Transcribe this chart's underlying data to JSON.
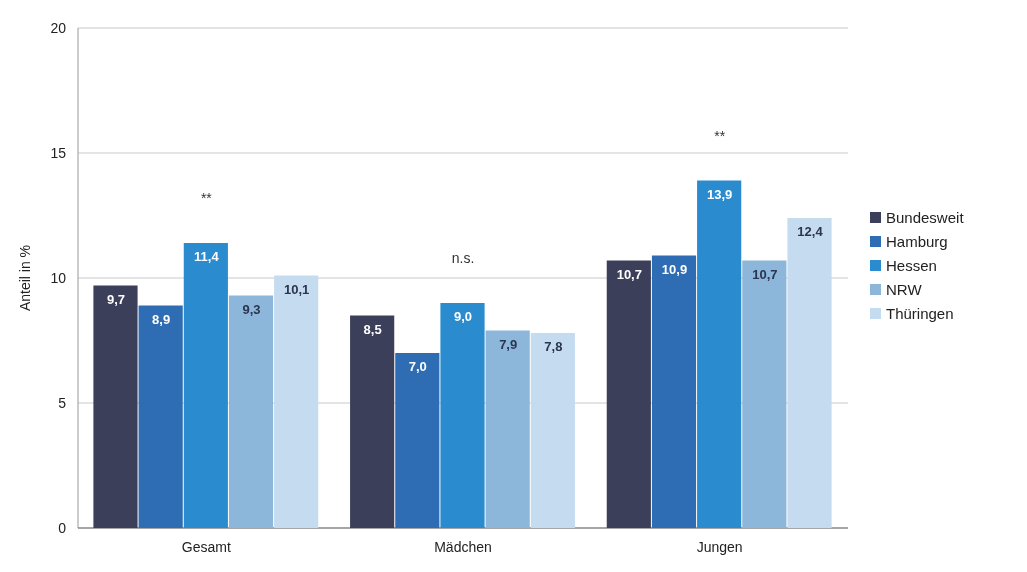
{
  "chart_data": {
    "type": "bar",
    "ylabel": "Anteil in %",
    "categories": [
      "Gesamt",
      "Mädchen",
      "Jungen"
    ],
    "series": [
      {
        "name": "Bundesweit",
        "color": "#3b3f5a",
        "values": [
          9.7,
          8.5,
          10.7
        ],
        "value_labels": [
          "9,7",
          "8,5",
          "10,7"
        ]
      },
      {
        "name": "Hamburg",
        "color": "#2e6db3",
        "values": [
          8.9,
          7.0,
          10.9
        ],
        "value_labels": [
          "8,9",
          "7,0",
          "10,9"
        ]
      },
      {
        "name": "Hessen",
        "color": "#2a8ccf",
        "values": [
          11.4,
          9.0,
          13.9
        ],
        "value_labels": [
          "11,4",
          "9,0",
          "13,9"
        ]
      },
      {
        "name": "NRW",
        "color": "#8db6db",
        "values": [
          9.3,
          7.9,
          10.7
        ],
        "value_labels": [
          "9,3",
          "7,9",
          "10,7"
        ]
      },
      {
        "name": "Thüringen",
        "color": "#c5dbef",
        "values": [
          10.1,
          7.8,
          12.4
        ],
        "value_labels": [
          "10,1",
          "7,8",
          "12,4"
        ]
      }
    ],
    "ylim": [
      0,
      20
    ],
    "yticks": [
      0,
      5,
      10,
      15,
      20
    ],
    "grid": "y",
    "legend": "right",
    "annotations": [
      "**",
      "n.s.",
      "**"
    ]
  }
}
